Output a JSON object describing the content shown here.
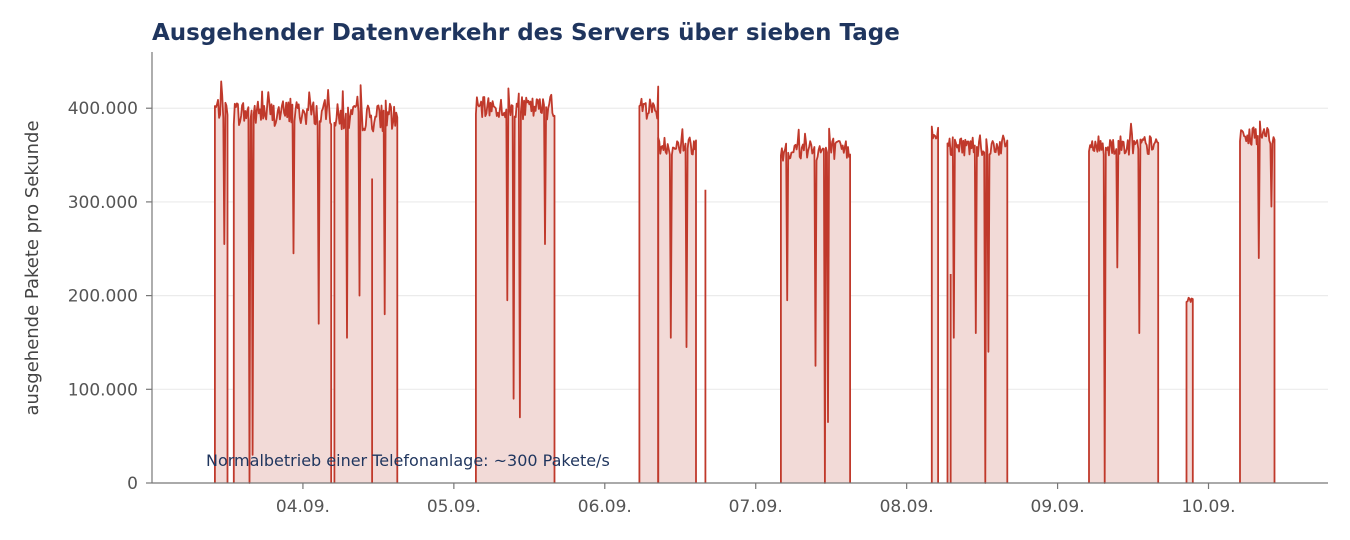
{
  "chart_data": {
    "type": "area",
    "title": "Ausgehender Datenverkehr des Servers über sieben Tage",
    "xlabel": "",
    "ylabel": "ausgehende Pakete pro Sekunde",
    "ylim": [
      0,
      460000
    ],
    "yticks": [
      0,
      100000,
      200000,
      300000,
      400000
    ],
    "ytick_labels": [
      "0",
      "100.000",
      "200.000",
      "300.000",
      "400.000"
    ],
    "x_range": [
      "2024-09-03T00:00",
      "2024-09-10T19:00"
    ],
    "xticks": [
      "2024-09-04",
      "2024-09-05",
      "2024-09-06",
      "2024-09-07",
      "2024-09-08",
      "2024-09-09",
      "2024-09-10"
    ],
    "xtick_labels": [
      "04.09.",
      "05.09.",
      "06.09.",
      "07.09.",
      "08.09.",
      "09.09.",
      "10.09."
    ],
    "grid": "horizontal",
    "colors": {
      "line": "#c0392b",
      "fill": "#f2dad7",
      "title": "#1f355e",
      "annotation": "#1f355e"
    },
    "annotation": "Normalbetrieb einer Telefonanlage: ~300 Pakete/s",
    "series": [
      {
        "name": "",
        "segments": [
          {
            "start": "2024-09-03T10:00",
            "end": "2024-09-03T12:00",
            "base": 400000,
            "noise": 12000
          },
          {
            "start": "2024-09-03T13:00",
            "end": "2024-09-04T04:30",
            "base": 395000,
            "noise": 14000
          },
          {
            "start": "2024-09-04T05:00",
            "end": "2024-09-04T15:00",
            "base": 390000,
            "noise": 15000
          },
          {
            "start": "2024-09-05T03:30",
            "end": "2024-09-05T16:00",
            "base": 400000,
            "noise": 12000
          },
          {
            "start": "2024-09-06T05:30",
            "end": "2024-09-06T08:30",
            "base": 400000,
            "noise": 12000
          },
          {
            "start": "2024-09-06T08:30",
            "end": "2024-09-06T14:30",
            "base": 360000,
            "noise": 10000
          },
          {
            "start": "2024-09-07T04:00",
            "end": "2024-09-07T15:00",
            "base": 355000,
            "noise": 11000
          },
          {
            "start": "2024-09-08T04:00",
            "end": "2024-09-08T05:00",
            "base": 375000,
            "noise": 9000
          },
          {
            "start": "2024-09-08T06:30",
            "end": "2024-09-08T16:00",
            "base": 360000,
            "noise": 11000
          },
          {
            "start": "2024-09-09T05:00",
            "end": "2024-09-09T16:00",
            "base": 360000,
            "noise": 11000
          },
          {
            "start": "2024-09-09T20:30",
            "end": "2024-09-09T21:30",
            "base": 195000,
            "noise": 2000
          },
          {
            "start": "2024-09-10T05:00",
            "end": "2024-09-10T10:30",
            "base": 370000,
            "noise": 9000
          }
        ],
        "spikes": [
          {
            "t": "2024-09-04T11:00",
            "v": 325000
          },
          {
            "t": "2024-09-06T16:00",
            "v": 313000
          },
          {
            "t": "2024-09-08T07:00",
            "v": 223000
          }
        ],
        "dips": [
          {
            "t": "2024-09-03T11:30",
            "v": 255000
          },
          {
            "t": "2024-09-03T15:30",
            "v": 0
          },
          {
            "t": "2024-09-03T16:00",
            "v": 30000
          },
          {
            "t": "2024-09-03T22:30",
            "v": 245000
          },
          {
            "t": "2024-09-04T02:30",
            "v": 170000
          },
          {
            "t": "2024-09-04T07:00",
            "v": 155000
          },
          {
            "t": "2024-09-04T09:00",
            "v": 200000
          },
          {
            "t": "2024-09-04T13:00",
            "v": 180000
          },
          {
            "t": "2024-09-05T08:30",
            "v": 195000
          },
          {
            "t": "2024-09-05T09:30",
            "v": 90000
          },
          {
            "t": "2024-09-05T10:30",
            "v": 70000
          },
          {
            "t": "2024-09-05T14:30",
            "v": 255000
          },
          {
            "t": "2024-09-06T10:30",
            "v": 155000
          },
          {
            "t": "2024-09-06T13:00",
            "v": 145000
          },
          {
            "t": "2024-09-07T05:00",
            "v": 195000
          },
          {
            "t": "2024-09-07T09:30",
            "v": 125000
          },
          {
            "t": "2024-09-07T11:00",
            "v": 0
          },
          {
            "t": "2024-09-07T11:30",
            "v": 65000
          },
          {
            "t": "2024-09-08T07:30",
            "v": 155000
          },
          {
            "t": "2024-09-08T11:00",
            "v": 160000
          },
          {
            "t": "2024-09-08T12:30",
            "v": 0
          },
          {
            "t": "2024-09-08T13:00",
            "v": 140000
          },
          {
            "t": "2024-09-09T07:30",
            "v": 0
          },
          {
            "t": "2024-09-09T09:30",
            "v": 230000
          },
          {
            "t": "2024-09-09T13:00",
            "v": 160000
          },
          {
            "t": "2024-09-10T08:00",
            "v": 240000
          },
          {
            "t": "2024-09-10T10:00",
            "v": 295000
          }
        ]
      }
    ]
  }
}
